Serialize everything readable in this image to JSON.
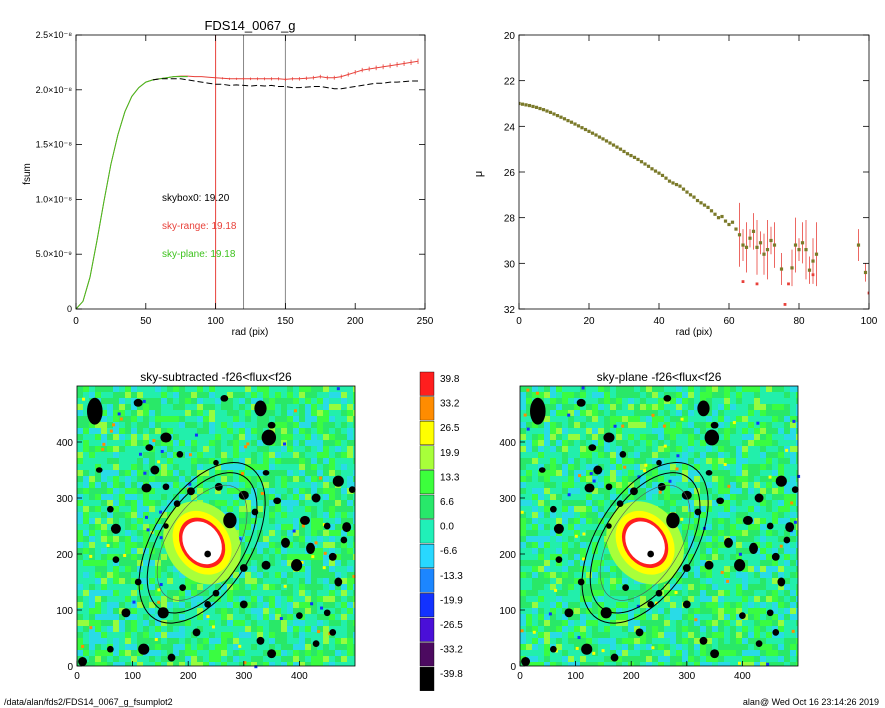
{
  "chart_data": [
    {
      "type": "line",
      "title": "FDS14_0067_g",
      "xlabel": "rad (pix)",
      "ylabel": "fsum",
      "xlim": [
        0,
        250
      ],
      "ylim": [
        0,
        2.5e-08
      ],
      "xticks": [
        0,
        50,
        100,
        150,
        200,
        250
      ],
      "yticks": [
        {
          "v": 0,
          "label": "0"
        },
        {
          "v": 5e-09,
          "label": "5.0×10⁻⁹"
        },
        {
          "v": 1e-08,
          "label": "1.0×10⁻⁸"
        },
        {
          "v": 1.5e-08,
          "label": "1.5×10⁻⁸"
        },
        {
          "v": 2e-08,
          "label": "2.0×10⁻⁸"
        },
        {
          "v": 2.5e-08,
          "label": "2.5×10⁻⁸"
        }
      ],
      "vlines": [
        {
          "x": 100,
          "color": "#e8413a"
        },
        {
          "x": 120,
          "color": "#888888"
        },
        {
          "x": 150,
          "color": "#888888"
        }
      ],
      "annotations": [
        {
          "text": "skybox0: 19.20",
          "color": "#000000"
        },
        {
          "text": "sky-range: 19.18",
          "color": "#e8413a"
        },
        {
          "text": "sky-plane: 19.18",
          "color": "#3ec21e"
        }
      ],
      "series": [
        {
          "color": "#e8413a",
          "errorbars": true,
          "x": [
            0,
            5,
            10,
            15,
            20,
            25,
            30,
            35,
            40,
            45,
            50,
            55,
            60,
            65,
            70,
            75,
            80,
            85,
            90,
            95,
            100,
            105,
            110,
            115,
            120,
            125,
            130,
            135,
            140,
            145,
            150,
            155,
            160,
            165,
            170,
            175,
            180,
            185,
            190,
            195,
            200,
            205,
            210,
            215,
            220,
            225,
            230,
            235,
            240,
            245
          ],
          "y": [
            0,
            7e-10,
            2.9e-09,
            6.2e-09,
            9.8e-09,
            1.32e-08,
            1.59e-08,
            1.8e-08,
            1.94e-08,
            2.02e-08,
            2.07e-08,
            2.09e-08,
            2.1e-08,
            2.11e-08,
            2.12e-08,
            2.125e-08,
            2.125e-08,
            2.12e-08,
            2.12e-08,
            2.115e-08,
            2.11e-08,
            2.105e-08,
            2.1e-08,
            2.1e-08,
            2.1e-08,
            2.1e-08,
            2.1e-08,
            2.1e-08,
            2.1e-08,
            2.1e-08,
            2.095e-08,
            2.1e-08,
            2.1e-08,
            2.105e-08,
            2.11e-08,
            2.12e-08,
            2.11e-08,
            2.11e-08,
            2.12e-08,
            2.14e-08,
            2.16e-08,
            2.18e-08,
            2.19e-08,
            2.2e-08,
            2.21e-08,
            2.22e-08,
            2.23e-08,
            2.24e-08,
            2.25e-08,
            2.26e-08
          ],
          "err": [
            0,
            0,
            0,
            0,
            0,
            0,
            0,
            0,
            0,
            0,
            0,
            0,
            0,
            0,
            0,
            0,
            0,
            0,
            0,
            0,
            1e-10,
            1e-10,
            1e-10,
            1e-10,
            1.2e-10,
            1.2e-10,
            1.3e-10,
            1.3e-10,
            1.4e-10,
            1.4e-10,
            1.5e-10,
            1.5e-10,
            1.6e-10,
            1.6e-10,
            1.7e-10,
            1.7e-10,
            1.8e-10,
            1.8e-10,
            1.9e-10,
            1.9e-10,
            2e-10,
            2e-10,
            2.1e-10,
            2.1e-10,
            2.2e-10,
            2.2e-10,
            2.3e-10,
            2.3e-10,
            2.4e-10,
            2.5e-10
          ]
        },
        {
          "color": "#3ec21e",
          "x": [
            0,
            5,
            10,
            15,
            20,
            25,
            30,
            35,
            40,
            45,
            50,
            55,
            60,
            65,
            70,
            75,
            80
          ],
          "y": [
            0,
            7e-10,
            2.9e-09,
            6.2e-09,
            9.8e-09,
            1.32e-08,
            1.59e-08,
            1.8e-08,
            1.94e-08,
            2.02e-08,
            2.07e-08,
            2.09e-08,
            2.1e-08,
            2.11e-08,
            2.12e-08,
            2.12e-08,
            2.12e-08
          ]
        },
        {
          "color": "#000000",
          "dashed": true,
          "x": [
            55,
            60,
            65,
            70,
            75,
            80,
            85,
            90,
            95,
            100,
            105,
            110,
            115,
            120,
            125,
            130,
            135,
            140,
            145,
            150,
            155,
            160,
            165,
            170,
            175,
            180,
            185,
            190,
            195,
            200,
            205,
            210,
            215,
            220,
            225,
            230,
            235,
            240,
            245
          ],
          "y": [
            2.09e-08,
            2.1e-08,
            2.1e-08,
            2.1e-08,
            2.1e-08,
            2.09e-08,
            2.08e-08,
            2.07e-08,
            2.06e-08,
            2.05e-08,
            2.05e-08,
            2.04e-08,
            2.045e-08,
            2.04e-08,
            2.035e-08,
            2.04e-08,
            2.035e-08,
            2.04e-08,
            2.03e-08,
            2.03e-08,
            2.02e-08,
            2.02e-08,
            2.025e-08,
            2.03e-08,
            2.03e-08,
            2.02e-08,
            2.01e-08,
            2.01e-08,
            2.02e-08,
            2.03e-08,
            2.04e-08,
            2.05e-08,
            2.06e-08,
            2.06e-08,
            2.07e-08,
            2.07e-08,
            2.075e-08,
            2.08e-08,
            2.08e-08
          ]
        }
      ]
    },
    {
      "type": "scatter",
      "title": "",
      "xlabel": "rad (pix)",
      "ylabel": "μ",
      "xlim": [
        0,
        100
      ],
      "ylim": [
        32,
        20
      ],
      "xticks": [
        0,
        20,
        40,
        60,
        80,
        100
      ],
      "yticks": [
        20,
        22,
        24,
        26,
        28,
        30,
        32
      ],
      "points": [
        [
          0,
          23.0
        ],
        [
          1,
          23.03
        ],
        [
          2,
          23.06
        ],
        [
          3,
          23.09
        ],
        [
          4,
          23.13
        ],
        [
          5,
          23.17
        ],
        [
          6,
          23.22
        ],
        [
          7,
          23.27
        ],
        [
          8,
          23.33
        ],
        [
          9,
          23.39
        ],
        [
          10,
          23.46
        ],
        [
          11,
          23.53
        ],
        [
          12,
          23.6
        ],
        [
          13,
          23.67
        ],
        [
          14,
          23.75
        ],
        [
          15,
          23.82
        ],
        [
          16,
          23.9
        ],
        [
          17,
          23.98
        ],
        [
          18,
          24.06
        ],
        [
          19,
          24.14
        ],
        [
          20,
          24.22
        ],
        [
          21,
          24.3
        ],
        [
          22,
          24.38
        ],
        [
          23,
          24.47
        ],
        [
          24,
          24.55
        ],
        [
          25,
          24.64
        ],
        [
          26,
          24.73
        ],
        [
          27,
          24.82
        ],
        [
          28,
          24.91
        ],
        [
          29,
          25.0
        ],
        [
          30,
          25.1
        ],
        [
          31,
          25.2
        ],
        [
          32,
          25.28
        ],
        [
          33,
          25.36
        ],
        [
          34,
          25.45
        ],
        [
          35,
          25.55
        ],
        [
          36,
          25.65
        ],
        [
          37,
          25.75
        ],
        [
          38,
          25.86
        ],
        [
          39,
          25.96
        ],
        [
          40,
          26.05
        ],
        [
          41,
          26.15
        ],
        [
          42,
          26.27
        ],
        [
          43,
          26.4
        ],
        [
          44,
          26.48
        ],
        [
          45,
          26.55
        ],
        [
          46,
          26.62
        ],
        [
          47,
          26.75
        ],
        [
          48,
          26.88
        ],
        [
          49,
          27.0
        ],
        [
          50,
          27.1
        ],
        [
          51,
          27.25
        ],
        [
          52,
          27.35
        ],
        [
          53,
          27.45
        ],
        [
          54,
          27.55
        ],
        [
          55,
          27.7
        ],
        [
          56,
          27.85
        ],
        [
          57,
          28.0
        ],
        [
          58,
          27.95
        ],
        [
          59,
          28.15
        ],
        [
          60,
          28.3
        ],
        [
          61,
          28.2
        ],
        [
          62,
          28.5
        ],
        [
          63,
          28.75
        ],
        [
          64,
          29.2
        ],
        [
          65,
          29.3
        ],
        [
          66,
          28.9
        ],
        [
          67,
          28.6
        ],
        [
          68,
          29.3
        ],
        [
          69,
          29.1
        ],
        [
          70,
          29.6
        ],
        [
          71,
          29.4
        ],
        [
          72,
          29.0
        ],
        [
          73,
          29.2
        ],
        [
          75,
          30.25
        ],
        [
          78,
          30.2
        ],
        [
          79,
          29.2
        ],
        [
          80,
          29.4
        ],
        [
          81,
          29.1
        ],
        [
          82,
          29.4
        ],
        [
          83,
          30.3
        ],
        [
          84,
          29.9
        ],
        [
          85,
          29.6
        ],
        [
          97,
          29.2
        ],
        [
          99,
          30.4
        ]
      ],
      "outliers": [
        [
          64,
          30.8
        ],
        [
          68,
          30.9
        ],
        [
          76,
          31.8
        ],
        [
          77,
          30.9
        ],
        [
          84,
          30.5
        ],
        [
          100,
          31.3
        ]
      ]
    },
    {
      "type": "heatmap",
      "title": "sky-subtracted -f26<flux<f26",
      "xlim": [
        0,
        500
      ],
      "ylim": [
        0,
        500
      ],
      "xticks": [
        0,
        100,
        200,
        300,
        400
      ],
      "yticks": [
        0,
        100,
        200,
        300,
        400
      ],
      "galaxy_center": [
        225,
        220
      ],
      "ellipses": [
        {
          "a": 115,
          "b": 62,
          "angle_deg": -58
        },
        {
          "a": 140,
          "b": 76,
          "angle_deg": -58
        },
        {
          "a": 160,
          "b": 88,
          "angle_deg": -58
        }
      ]
    },
    {
      "type": "heatmap",
      "title": "sky-plane -f26<flux<f26",
      "xlim": [
        0,
        500
      ],
      "ylim": [
        0,
        500
      ],
      "xticks": [
        0,
        100,
        200,
        300,
        400
      ],
      "yticks": [
        0,
        100,
        200,
        300,
        400
      ]
    }
  ],
  "colorbar": {
    "labels": [
      "39.8",
      "33.2",
      "26.5",
      "19.9",
      "13.3",
      "6.6",
      "0.0",
      "-6.6",
      "-13.3",
      "-19.9",
      "-26.5",
      "-33.2",
      "-39.8"
    ],
    "colors": [
      "#ff1e1e",
      "#ff8c00",
      "#ffff00",
      "#a8ff3a",
      "#3cff3c",
      "#28e86a",
      "#20f0b8",
      "#28d8ff",
      "#1c86ff",
      "#1232ff",
      "#4a0fd8",
      "#4c0a60",
      "#000000"
    ]
  },
  "footer": {
    "left": "/data/alan/fds2/FDS14_0067_g_fsumplot2",
    "right": "alan@  Wed Oct 16 23:14:26 2019"
  }
}
